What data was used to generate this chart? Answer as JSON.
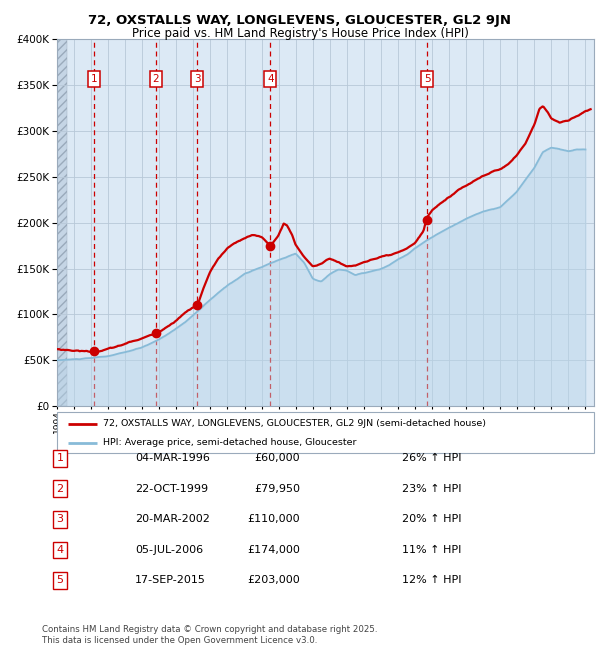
{
  "title1": "72, OXSTALLS WAY, LONGLEVENS, GLOUCESTER, GL2 9JN",
  "title2": "Price paid vs. HM Land Registry's House Price Index (HPI)",
  "legend_line1": "72, OXSTALLS WAY, LONGLEVENS, GLOUCESTER, GL2 9JN (semi-detached house)",
  "legend_line2": "HPI: Average price, semi-detached house, Gloucester",
  "footer": "Contains HM Land Registry data © Crown copyright and database right 2025.\nThis data is licensed under the Open Government Licence v3.0.",
  "transactions": [
    {
      "num": 1,
      "date": "04-MAR-1996",
      "year": 1996.17,
      "price": 60000,
      "hpi_pct": "26% ↑ HPI"
    },
    {
      "num": 2,
      "date": "22-OCT-1999",
      "year": 1999.81,
      "price": 79950,
      "hpi_pct": "23% ↑ HPI"
    },
    {
      "num": 3,
      "date": "20-MAR-2002",
      "year": 2002.22,
      "price": 110000,
      "hpi_pct": "20% ↑ HPI"
    },
    {
      "num": 4,
      "date": "05-JUL-2006",
      "year": 2006.51,
      "price": 174000,
      "hpi_pct": "11% ↑ HPI"
    },
    {
      "num": 5,
      "date": "17-SEP-2015",
      "year": 2015.71,
      "price": 203000,
      "hpi_pct": "12% ↑ HPI"
    }
  ],
  "ylim": [
    0,
    400000
  ],
  "xlim_start": 1994.0,
  "xlim_end": 2025.5,
  "red_color": "#cc0000",
  "blue_color": "#88bbd8",
  "blue_fill": "#b8d4e8",
  "bg_color": "#dce9f5",
  "grid_color": "#b8c8d8",
  "hpi_keypoints": [
    [
      1994.0,
      50000
    ],
    [
      1995.0,
      51000
    ],
    [
      1996.0,
      52000
    ],
    [
      1997.0,
      54000
    ],
    [
      1998.0,
      58000
    ],
    [
      1999.0,
      63000
    ],
    [
      2000.0,
      72000
    ],
    [
      2001.0,
      84000
    ],
    [
      2002.0,
      98000
    ],
    [
      2003.0,
      115000
    ],
    [
      2004.0,
      130000
    ],
    [
      2005.0,
      143000
    ],
    [
      2006.0,
      150000
    ],
    [
      2007.0,
      158000
    ],
    [
      2008.0,
      165000
    ],
    [
      2008.5,
      155000
    ],
    [
      2009.0,
      138000
    ],
    [
      2009.5,
      135000
    ],
    [
      2010.0,
      143000
    ],
    [
      2010.5,
      148000
    ],
    [
      2011.0,
      147000
    ],
    [
      2011.5,
      142000
    ],
    [
      2012.0,
      144000
    ],
    [
      2012.5,
      146000
    ],
    [
      2013.0,
      148000
    ],
    [
      2013.5,
      152000
    ],
    [
      2014.0,
      158000
    ],
    [
      2014.5,
      163000
    ],
    [
      2015.0,
      170000
    ],
    [
      2015.5,
      176000
    ],
    [
      2016.0,
      182000
    ],
    [
      2017.0,
      192000
    ],
    [
      2018.0,
      202000
    ],
    [
      2019.0,
      210000
    ],
    [
      2020.0,
      215000
    ],
    [
      2021.0,
      232000
    ],
    [
      2022.0,
      258000
    ],
    [
      2022.5,
      275000
    ],
    [
      2023.0,
      280000
    ],
    [
      2023.5,
      278000
    ],
    [
      2024.0,
      276000
    ],
    [
      2024.5,
      278000
    ],
    [
      2025.0,
      278000
    ]
  ],
  "price_keypoints": [
    [
      1994.0,
      62000
    ],
    [
      1995.0,
      61000
    ],
    [
      1996.0,
      60000
    ],
    [
      1996.17,
      60000
    ],
    [
      1996.5,
      61000
    ],
    [
      1997.0,
      63000
    ],
    [
      1997.5,
      65000
    ],
    [
      1998.0,
      68000
    ],
    [
      1998.5,
      71000
    ],
    [
      1999.0,
      74000
    ],
    [
      1999.5,
      77000
    ],
    [
      1999.81,
      79950
    ],
    [
      2000.0,
      82000
    ],
    [
      2000.5,
      88000
    ],
    [
      2001.0,
      95000
    ],
    [
      2001.5,
      103000
    ],
    [
      2002.0,
      109000
    ],
    [
      2002.22,
      110000
    ],
    [
      2002.5,
      125000
    ],
    [
      2003.0,
      148000
    ],
    [
      2003.5,
      162000
    ],
    [
      2004.0,
      172000
    ],
    [
      2004.5,
      178000
    ],
    [
      2005.0,
      182000
    ],
    [
      2005.5,
      185000
    ],
    [
      2006.0,
      183000
    ],
    [
      2006.51,
      174000
    ],
    [
      2007.0,
      185000
    ],
    [
      2007.3,
      198000
    ],
    [
      2007.5,
      196000
    ],
    [
      2007.8,
      185000
    ],
    [
      2008.0,
      175000
    ],
    [
      2008.5,
      162000
    ],
    [
      2009.0,
      152000
    ],
    [
      2009.5,
      155000
    ],
    [
      2010.0,
      160000
    ],
    [
      2010.5,
      157000
    ],
    [
      2011.0,
      152000
    ],
    [
      2011.5,
      153000
    ],
    [
      2012.0,
      157000
    ],
    [
      2012.5,
      160000
    ],
    [
      2013.0,
      162000
    ],
    [
      2013.5,
      163000
    ],
    [
      2014.0,
      165000
    ],
    [
      2014.5,
      168000
    ],
    [
      2015.0,
      175000
    ],
    [
      2015.5,
      188000
    ],
    [
      2015.71,
      203000
    ],
    [
      2016.0,
      210000
    ],
    [
      2016.5,
      218000
    ],
    [
      2017.0,
      225000
    ],
    [
      2017.5,
      232000
    ],
    [
      2018.0,
      238000
    ],
    [
      2018.5,
      243000
    ],
    [
      2019.0,
      248000
    ],
    [
      2019.5,
      252000
    ],
    [
      2020.0,
      255000
    ],
    [
      2020.5,
      262000
    ],
    [
      2021.0,
      272000
    ],
    [
      2021.5,
      285000
    ],
    [
      2022.0,
      305000
    ],
    [
      2022.3,
      322000
    ],
    [
      2022.5,
      325000
    ],
    [
      2022.8,
      318000
    ],
    [
      2023.0,
      312000
    ],
    [
      2023.5,
      308000
    ],
    [
      2024.0,
      310000
    ],
    [
      2024.5,
      315000
    ],
    [
      2025.0,
      320000
    ],
    [
      2025.3,
      322000
    ]
  ]
}
